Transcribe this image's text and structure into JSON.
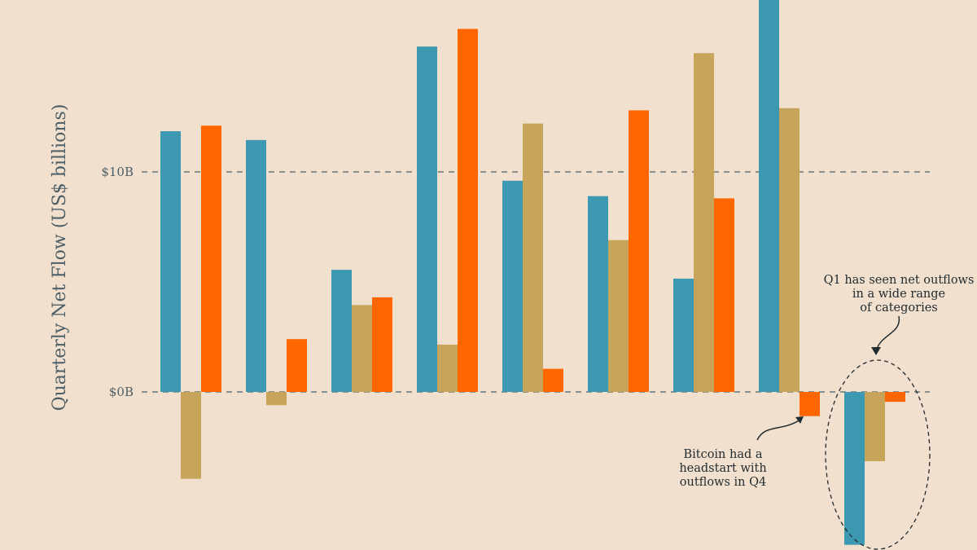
{
  "chart_data": {
    "type": "bar",
    "title": "",
    "xlabel": "",
    "ylabel": "Quarterly Net Flow (US$ billions)",
    "ylim": [
      -7.2,
      17.8
    ],
    "yticks": [
      {
        "value": 0,
        "label": "$0B"
      },
      {
        "value": 10,
        "label": "$10B"
      }
    ],
    "grid": "dashed horizontal at ticks",
    "legend": "none",
    "group_count": 9,
    "series": [
      {
        "color": "#3d98b2",
        "values": [
          11.85,
          11.45,
          5.55,
          15.7,
          9.6,
          8.9,
          5.15,
          18.5,
          -6.95
        ]
      },
      {
        "color": "#c6a459",
        "values": [
          -3.95,
          -0.6,
          3.95,
          2.15,
          12.2,
          6.9,
          15.4,
          12.9,
          -3.15
        ]
      },
      {
        "color": "#ff6600",
        "values": [
          12.1,
          2.4,
          4.3,
          16.5,
          1.05,
          12.8,
          8.8,
          -1.1,
          -0.45
        ]
      }
    ],
    "annotations": [
      {
        "lines": [
          "Q1 has seen net outflows",
          "in a wide range",
          "of categories"
        ],
        "target_group": 9
      },
      {
        "lines": [
          "Bitcoin had a",
          "headstart with",
          "outflows in Q4"
        ],
        "target_group": 8,
        "target_series": 3
      }
    ]
  }
}
